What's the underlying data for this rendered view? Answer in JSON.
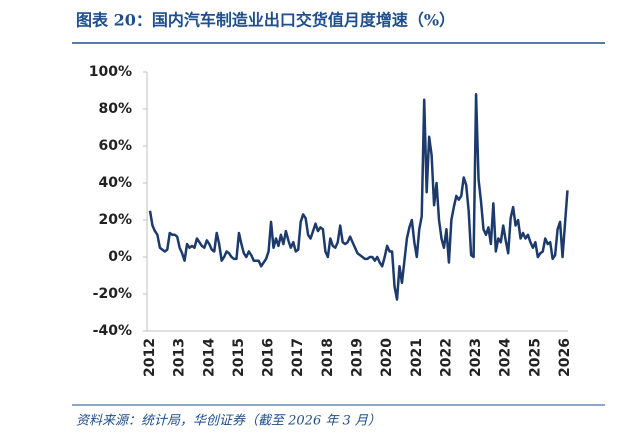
{
  "chart_data": {
    "type": "line",
    "title": "图表 20：国内汽车制造业出口交货值月度增速（%）",
    "source": "资料来源：统计局，华创证券（截至 2026 年 3 月）",
    "categories": [
      "2012",
      null,
      null,
      null,
      null,
      null,
      null,
      null,
      null,
      null,
      null,
      null,
      "2013",
      null,
      null,
      null,
      null,
      null,
      null,
      null,
      null,
      null,
      null,
      null,
      "2014",
      null,
      null,
      null,
      null,
      null,
      null,
      null,
      null,
      null,
      null,
      null,
      "2015",
      null,
      null,
      null,
      null,
      null,
      null,
      null,
      null,
      null,
      null,
      null,
      "2016",
      null,
      null,
      null,
      null,
      null,
      null,
      null,
      null,
      null,
      null,
      null,
      "2017",
      null,
      null,
      null,
      null,
      null,
      null,
      null,
      null,
      null,
      null,
      null,
      "2018",
      null,
      null,
      null,
      null,
      null,
      null,
      null,
      null,
      null,
      null,
      null,
      "2019",
      null,
      null,
      null,
      null,
      null,
      null,
      null,
      null,
      null,
      null,
      null,
      "2020",
      null,
      null,
      null,
      null,
      null,
      null,
      null,
      null,
      null,
      null,
      null,
      "2021",
      null,
      null,
      null,
      null,
      null,
      null,
      null,
      null,
      null,
      null,
      null,
      "2022",
      null,
      null,
      null,
      null,
      null,
      null,
      null,
      null,
      null,
      null,
      null,
      "2023",
      null,
      null,
      null,
      null,
      null,
      null,
      null,
      null,
      null,
      null,
      null,
      "2024",
      null,
      null,
      null,
      null,
      null,
      null,
      null,
      null,
      null,
      null,
      null,
      "2025",
      null,
      null,
      null,
      null,
      null,
      null,
      null,
      null,
      null,
      null,
      null,
      "2026",
      null
    ],
    "values": [
      25,
      17,
      14,
      12,
      5,
      4,
      3,
      4,
      13,
      12,
      12,
      11,
      5,
      2,
      -2,
      7,
      5,
      6,
      5,
      10,
      8,
      6,
      5,
      9,
      7,
      4,
      3,
      13,
      7,
      -2,
      0,
      3,
      2,
      0,
      -1,
      -1,
      13,
      7,
      2,
      0,
      3,
      1,
      -2,
      -2,
      -2,
      -5,
      -3,
      -1,
      3,
      19,
      5,
      10,
      6,
      12,
      7,
      14,
      9,
      5,
      8,
      3,
      4,
      19,
      23,
      21,
      12,
      10,
      14,
      18,
      14,
      16,
      15,
      3,
      0,
      10,
      6,
      5,
      8,
      17,
      8,
      7,
      8,
      11,
      8,
      5,
      2,
      1,
      0,
      -1,
      -1,
      0,
      0,
      -2,
      0,
      -3,
      -5,
      0,
      6,
      3,
      3,
      -16,
      -23,
      -5,
      -14,
      -2,
      10,
      16,
      20,
      8,
      0,
      15,
      22,
      85,
      35,
      65,
      55,
      28,
      40,
      20,
      10,
      5,
      15,
      -3,
      20,
      27,
      33,
      31,
      33,
      43,
      39,
      25,
      1,
      0,
      88,
      42,
      30,
      15,
      12,
      16,
      7,
      29,
      3,
      10,
      8,
      17,
      9,
      2,
      21,
      27,
      17,
      20,
      10,
      13,
      10,
      12,
      8,
      5,
      8,
      0,
      2,
      3,
      10,
      7,
      8,
      -1,
      1,
      15,
      19,
      0,
      18,
      36
    ],
    "color": "#1c3a6b",
    "ylim": [
      -40,
      100
    ],
    "yticks": [
      {
        "value": -40,
        "label": "-40%"
      },
      {
        "value": -20,
        "label": "-20%"
      },
      {
        "value": 0,
        "label": "0%"
      },
      {
        "value": 20,
        "label": "20%"
      },
      {
        "value": 40,
        "label": "40%"
      },
      {
        "value": 60,
        "label": "60%"
      },
      {
        "value": 80,
        "label": "80%"
      },
      {
        "value": 100,
        "label": "100%"
      }
    ]
  }
}
